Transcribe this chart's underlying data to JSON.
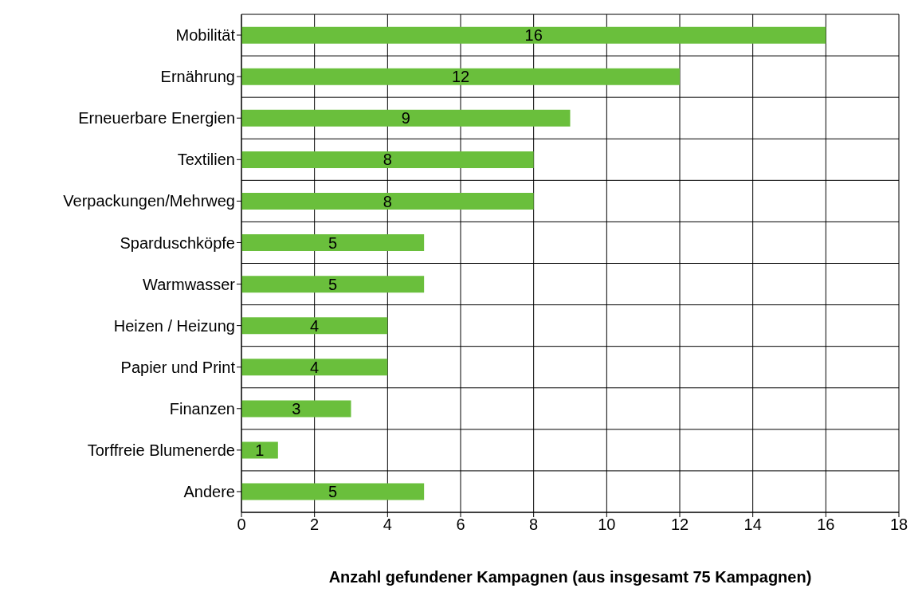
{
  "chart_data": {
    "type": "bar",
    "orientation": "horizontal",
    "xlabel": "Anzahl gefundener Kampagnen (aus insgesamt 75 Kampagnen)",
    "categories": [
      "Mobilität",
      "Ernährung",
      "Erneuerbare Energien",
      "Textilien",
      "Verpackungen/Mehrweg",
      "Sparduschköpfe",
      "Warmwasser",
      "Heizen / Heizung",
      "Papier und Print",
      "Finanzen",
      "Torffreie Blumenerde",
      "Andere"
    ],
    "values": [
      16,
      12,
      9,
      8,
      8,
      5,
      5,
      4,
      4,
      3,
      1,
      5
    ],
    "color": "#6abf3c",
    "data_labels": true,
    "grid": true,
    "xlim": [
      0,
      18
    ],
    "xticks": [
      0,
      2,
      4,
      6,
      8,
      10,
      12,
      14,
      16,
      18
    ]
  }
}
